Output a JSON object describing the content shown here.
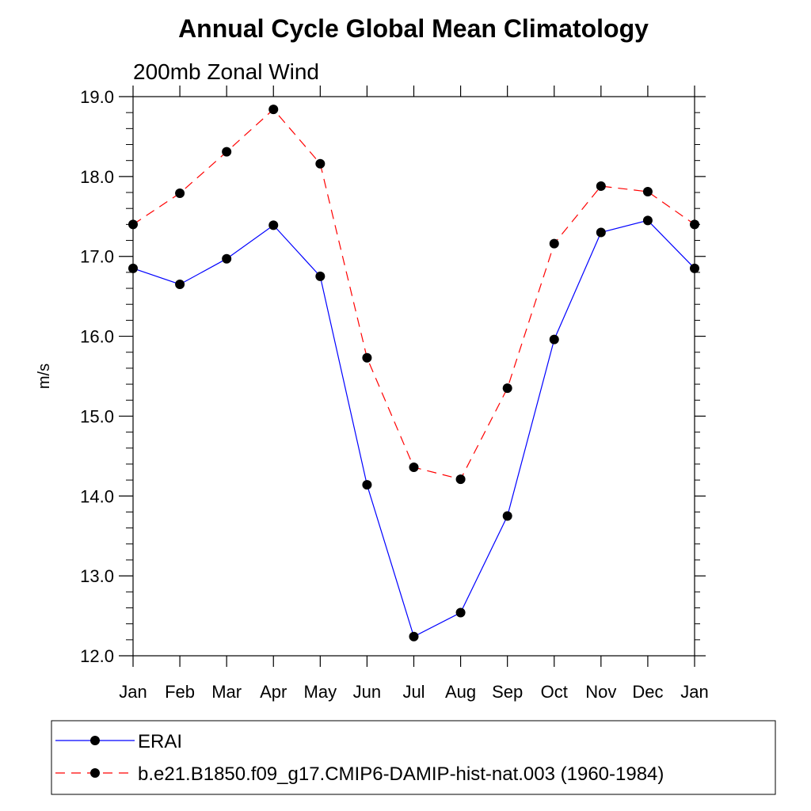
{
  "chart_data": {
    "type": "line",
    "title": "Annual Cycle Global Mean Climatology",
    "subtitle": "200mb Zonal Wind",
    "xlabel": "",
    "ylabel": "m/s",
    "ylim": [
      12.0,
      19.0
    ],
    "yticks": [
      "12.0",
      "13.0",
      "14.0",
      "15.0",
      "16.0",
      "17.0",
      "18.0",
      "19.0"
    ],
    "categories": [
      "Jan",
      "Feb",
      "Mar",
      "Apr",
      "May",
      "Jun",
      "Jul",
      "Aug",
      "Sep",
      "Oct",
      "Nov",
      "Dec",
      "Jan"
    ],
    "grid": false,
    "legend_position": "bottom",
    "series": [
      {
        "name": "ERAI",
        "color": "#0000ff",
        "line_style": "solid",
        "marker": "filled-circle",
        "values": [
          16.85,
          16.65,
          16.97,
          17.39,
          16.75,
          14.14,
          12.24,
          12.54,
          13.75,
          15.96,
          17.3,
          17.45,
          16.85
        ]
      },
      {
        "name": "b.e21.B1850.f09_g17.CMIP6-DAMIP-hist-nat.003 (1960-1984)",
        "color": "#ff0000",
        "line_style": "dashed",
        "marker": "filled-circle",
        "values": [
          17.4,
          17.79,
          18.31,
          18.84,
          18.16,
          15.73,
          14.36,
          14.21,
          15.35,
          17.16,
          17.88,
          17.81,
          17.4
        ]
      }
    ]
  }
}
